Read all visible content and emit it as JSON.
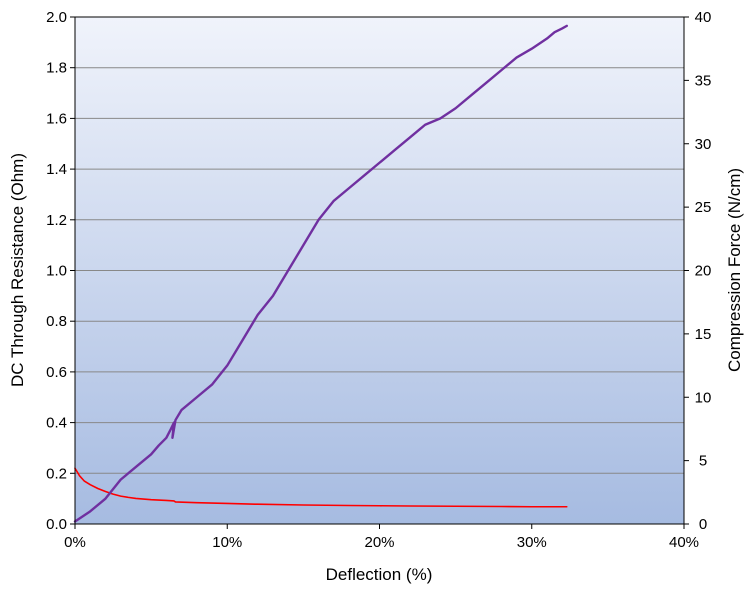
{
  "chart_data": {
    "type": "line",
    "xlabel": "Deflection (%)",
    "ylabel_left": "DC Through Resistance (Ohm)",
    "ylabel_right": "Compression Force (N/cm)",
    "xlim": [
      0,
      40
    ],
    "ylim_left": [
      0,
      2.0
    ],
    "ylim_right": [
      0,
      40
    ],
    "x_ticks": [
      "0%",
      "10%",
      "20%",
      "30%",
      "40%"
    ],
    "y_left_ticks": [
      "0.0",
      "0.2",
      "0.4",
      "0.6",
      "0.8",
      "1.0",
      "1.2",
      "1.4",
      "1.6",
      "1.8",
      "2.0"
    ],
    "y_right_ticks": [
      "0",
      "5",
      "10",
      "15",
      "20",
      "25",
      "30",
      "35",
      "40"
    ],
    "grid": "horizontal",
    "colors": {
      "resistance": "#ff0000",
      "force": "#7030a0",
      "gradient_top": "#f0f3fb",
      "gradient_bottom": "#a6bbe1"
    },
    "series": [
      {
        "axis": "left",
        "x": [
          0,
          0.3,
          0.6,
          1,
          1.5,
          2,
          2.5,
          3,
          3.5,
          4,
          5,
          6,
          6.5,
          6.6,
          8,
          10,
          12,
          15,
          18,
          20,
          22,
          25,
          28,
          30,
          32.3
        ],
        "y": [
          0.22,
          0.19,
          0.17,
          0.155,
          0.14,
          0.128,
          0.118,
          0.11,
          0.105,
          0.101,
          0.096,
          0.093,
          0.091,
          0.087,
          0.084,
          0.081,
          0.078,
          0.075,
          0.073,
          0.072,
          0.071,
          0.07,
          0.069,
          0.068,
          0.068
        ]
      },
      {
        "axis": "right",
        "x": [
          0,
          1,
          2,
          3,
          4,
          5,
          5.5,
          6,
          6.3,
          6.5,
          6.4,
          6.6,
          7,
          8,
          9,
          10,
          11,
          12,
          13,
          14,
          15,
          16,
          17,
          18,
          19,
          20,
          21,
          22,
          23,
          24,
          25,
          26,
          27,
          28,
          29,
          30,
          31,
          31.5,
          32,
          32.3
        ],
        "y": [
          0.2,
          1,
          2,
          3.5,
          4.5,
          5.5,
          6.2,
          6.8,
          7.5,
          8,
          6.8,
          8.2,
          9,
          10,
          11,
          12.5,
          14.5,
          16.5,
          18,
          20,
          22,
          24,
          25.5,
          26.5,
          27.5,
          28.5,
          29.5,
          30.5,
          31.5,
          32,
          32.8,
          33.8,
          34.8,
          35.8,
          36.8,
          37.5,
          38.3,
          38.8,
          39.1,
          39.3
        ]
      }
    ]
  }
}
